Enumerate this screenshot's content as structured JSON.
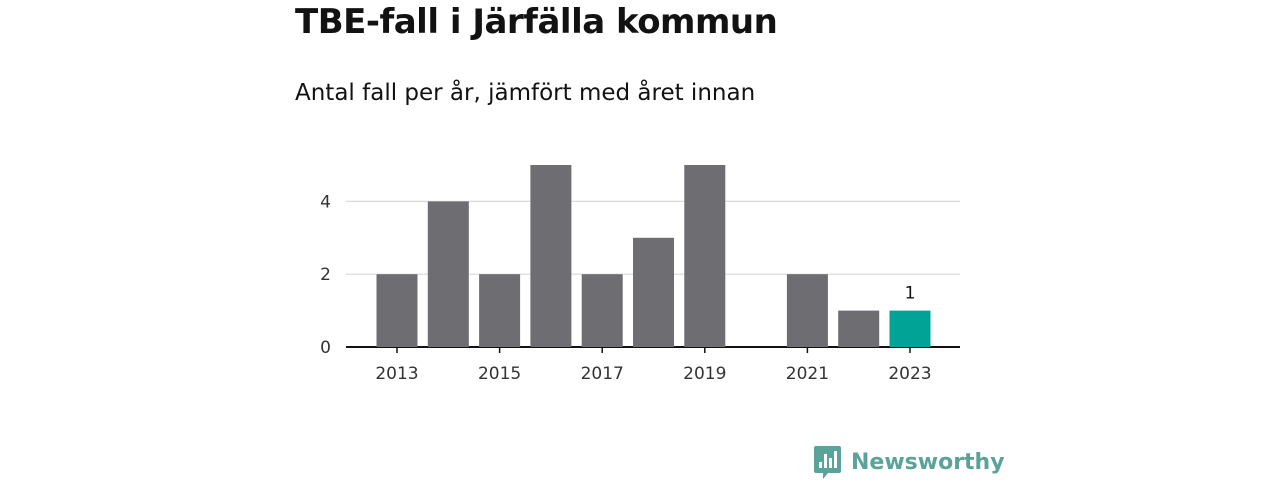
{
  "title": "TBE-fall i Järfälla kommun",
  "subtitle": "Antal fall per år, jämfört med året innan",
  "brand": {
    "name": "Newsworthy",
    "logo_icon": "newsworthy-chart-bubble-icon",
    "color": "#5aa39a"
  },
  "colors": {
    "bar": "#6e6d72",
    "highlight": "#00a396",
    "grid": "#d9d9d9",
    "axis": "#121212"
  },
  "chart_data": {
    "type": "bar",
    "categories": [
      "2013",
      "2014",
      "2015",
      "2016",
      "2017",
      "2018",
      "2019",
      "2020",
      "2021",
      "2022",
      "2023"
    ],
    "values": [
      2,
      4,
      2,
      5,
      2,
      3,
      5,
      0,
      2,
      1,
      1
    ],
    "highlight_category": "2023",
    "data_labels": [
      {
        "category": "2023",
        "text": "1"
      }
    ],
    "x_tick_labels": [
      "2013",
      "2015",
      "2017",
      "2019",
      "2021",
      "2023"
    ],
    "y_ticks": [
      0,
      2,
      4
    ],
    "ylim": [
      0,
      5
    ],
    "xlabel": "",
    "ylabel": "",
    "grid": true,
    "legend": "none"
  }
}
